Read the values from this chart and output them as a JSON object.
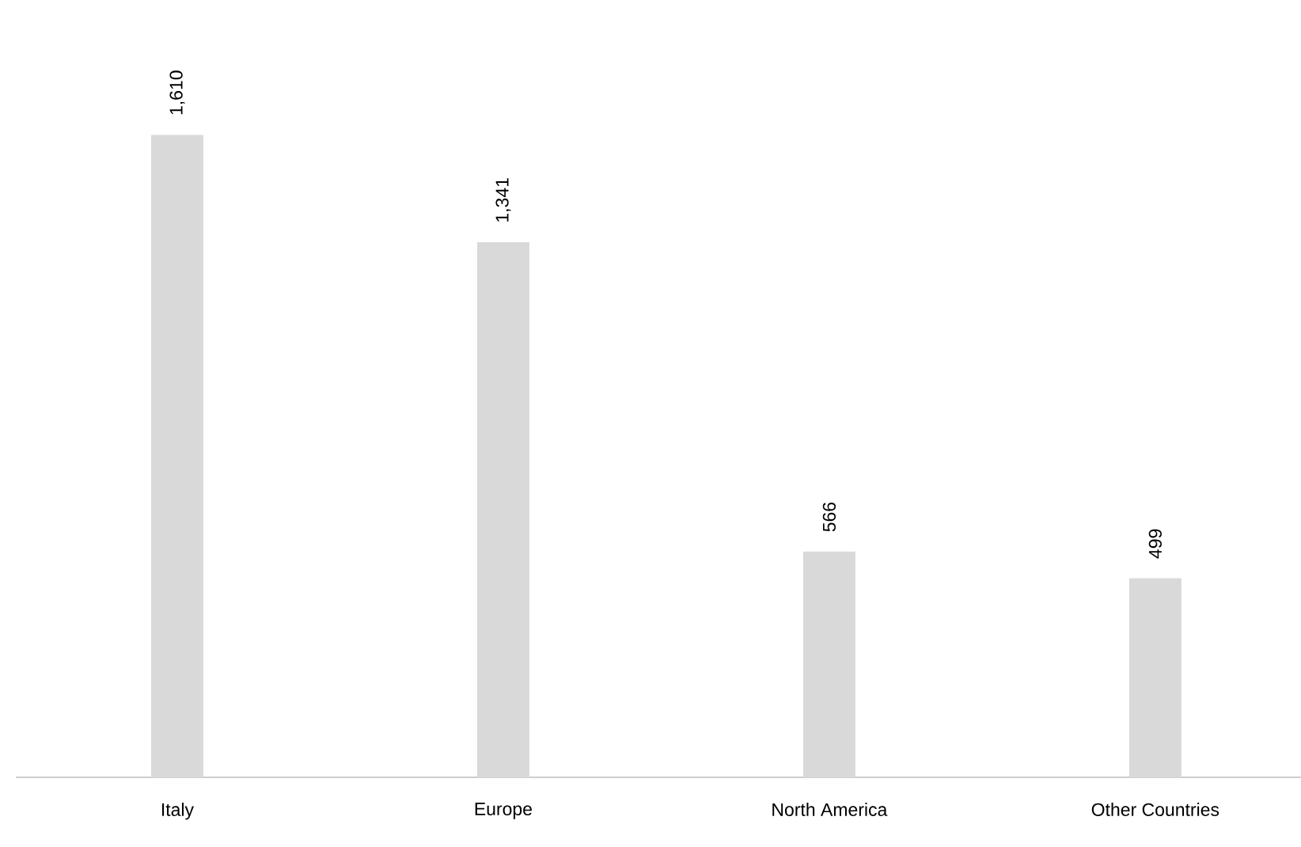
{
  "chart_data": {
    "type": "bar",
    "categories": [
      "Italy",
      "Europe",
      "North America",
      "Other Countries"
    ],
    "values": [
      1610,
      1341,
      566,
      499
    ],
    "value_labels": [
      "1,610",
      "1,341",
      "566",
      "499"
    ],
    "color": "#d9d9d9"
  }
}
